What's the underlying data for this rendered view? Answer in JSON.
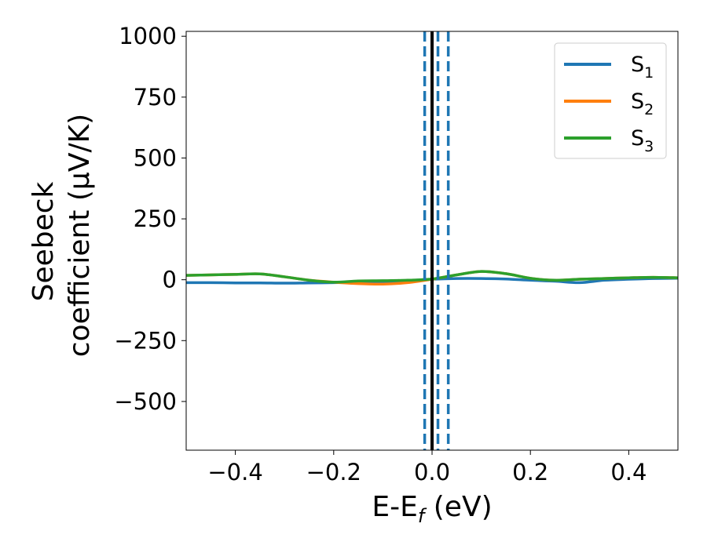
{
  "chart_data": {
    "type": "line",
    "xlabel": {
      "main": "E-E",
      "sub": "f",
      "tail": " (eV)"
    },
    "ylabel": {
      "line1": "Seebeck",
      "line2": "coefficient  (μV/K)"
    },
    "xlim": [
      -0.5,
      0.5
    ],
    "ylim": [
      -700,
      1020
    ],
    "xticks": [
      -0.4,
      -0.2,
      0.0,
      0.2,
      0.4
    ],
    "xtick_labels": [
      "−0.4",
      "−0.2",
      "0.0",
      "0.2",
      "0.4"
    ],
    "yticks": [
      1000,
      750,
      500,
      250,
      0,
      -250,
      -500
    ],
    "ytick_labels": [
      "1000",
      "750",
      "500",
      "250",
      "0",
      "−250",
      "−500"
    ],
    "grid": false,
    "legend_position": "top-right",
    "vertical_lines": [
      {
        "x": -0.015,
        "style": "dashed",
        "color": "#1f77b4"
      },
      {
        "x": 0.012,
        "style": "dashed",
        "color": "#1f77b4"
      },
      {
        "x": 0.033,
        "style": "dashed",
        "color": "#1f77b4"
      },
      {
        "x": 0.0,
        "style": "solid",
        "color": "#000000"
      }
    ],
    "series": [
      {
        "name": "S",
        "sub": "1",
        "color": "#1f77b4",
        "x": [
          -0.5,
          -0.45,
          -0.4,
          -0.35,
          -0.3,
          -0.25,
          -0.2,
          -0.15,
          -0.1,
          -0.05,
          0.0,
          0.05,
          0.1,
          0.15,
          0.2,
          0.25,
          0.3,
          0.35,
          0.4,
          0.45,
          0.5
        ],
        "y": [
          -12,
          -12,
          -13,
          -13,
          -14,
          -13,
          -12,
          -10,
          -8,
          -4,
          2,
          5,
          5,
          3,
          -2,
          -6,
          -12,
          -2,
          2,
          5,
          6
        ]
      },
      {
        "name": "S",
        "sub": "2",
        "color": "#ff7f0e",
        "x": [
          -0.5,
          -0.45,
          -0.4,
          -0.35,
          -0.3,
          -0.25,
          -0.2,
          -0.15,
          -0.1,
          -0.05,
          0.0,
          0.05,
          0.1,
          0.15,
          0.2,
          0.25,
          0.3,
          0.35,
          0.4,
          0.45,
          0.5
        ],
        "y": [
          18,
          20,
          22,
          24,
          12,
          -2,
          -10,
          -16,
          -18,
          -12,
          2,
          20,
          34,
          25,
          6,
          -2,
          2,
          5,
          8,
          10,
          8
        ]
      },
      {
        "name": "S",
        "sub": "3",
        "color": "#2ca02c",
        "x": [
          -0.5,
          -0.45,
          -0.4,
          -0.35,
          -0.3,
          -0.25,
          -0.2,
          -0.15,
          -0.1,
          -0.05,
          0.0,
          0.05,
          0.1,
          0.15,
          0.2,
          0.25,
          0.3,
          0.35,
          0.4,
          0.45,
          0.5
        ],
        "y": [
          18,
          20,
          22,
          24,
          12,
          -2,
          -10,
          -5,
          -4,
          -2,
          3,
          20,
          34,
          25,
          6,
          -2,
          2,
          5,
          8,
          10,
          8
        ]
      }
    ]
  }
}
